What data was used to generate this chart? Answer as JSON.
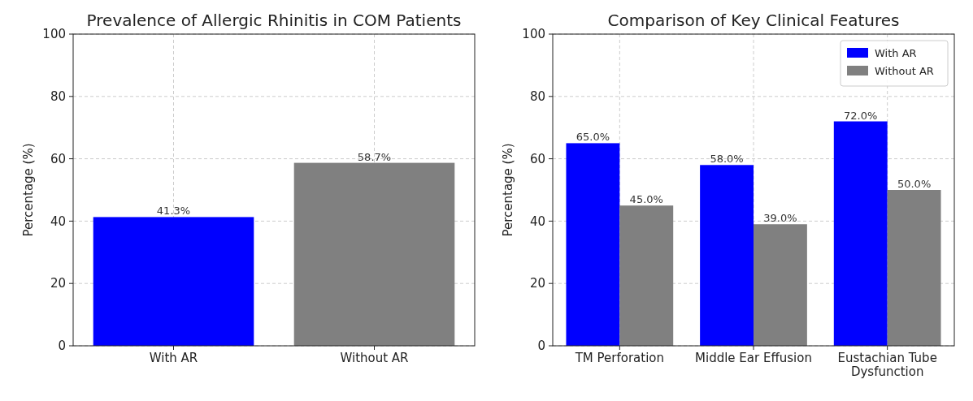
{
  "chart_data": [
    {
      "type": "bar",
      "title": "Prevalence of Allergic Rhinitis in COM Patients",
      "ylabel": "Percentage (%)",
      "categories": [
        "With AR",
        "Without AR"
      ],
      "values": [
        41.3,
        58.7
      ],
      "colors": [
        "#0000ff",
        "#808080"
      ],
      "value_labels": [
        "41.3%",
        "58.7%"
      ],
      "ylim": [
        0,
        100
      ],
      "yticks": [
        0,
        20,
        40,
        60,
        80,
        100
      ],
      "grid": true
    },
    {
      "type": "bar",
      "title": "Comparison of Key Clinical Features",
      "ylabel": "Percentage (%)",
      "categories": [
        "TM Perforation",
        "Middle Ear Effusion",
        "Eustachian Tube Dysfunction"
      ],
      "series": [
        {
          "name": "With AR",
          "color": "#0000ff",
          "values": [
            65,
            58,
            72
          ],
          "value_labels": [
            "65.0%",
            "58.0%",
            "72.0%"
          ]
        },
        {
          "name": "Without AR",
          "color": "#808080",
          "values": [
            45,
            39,
            50
          ],
          "value_labels": [
            "45.0%",
            "39.0%",
            "50.0%"
          ]
        }
      ],
      "ylim": [
        0,
        100
      ],
      "yticks": [
        0,
        20,
        40,
        60,
        80,
        100
      ],
      "grid": true,
      "legend": "top right"
    }
  ]
}
